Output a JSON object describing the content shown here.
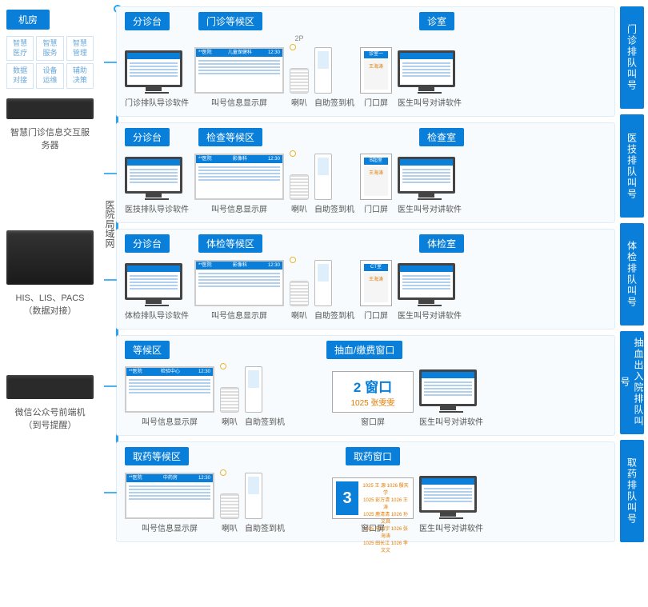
{
  "colors": {
    "primary": "#0a7fd9",
    "accent": "#2aa4f2",
    "orange": "#e27a00",
    "bg_panel": "#f8fbfd",
    "border": "#e1edf6"
  },
  "left": {
    "header": "机房",
    "tags": [
      "智慧医疗",
      "智慧服务",
      "智慧管理",
      "数据对接",
      "设备运维",
      "辅助决策"
    ],
    "server1": "智慧门诊信息交互服务器",
    "lan": "医院局域网",
    "server2a": "HIS、LIS、PACS",
    "server2b": "（数据对接）",
    "server3a": "微信公众号前端机",
    "server3b": "（到号提醒）"
  },
  "right": [
    "门诊排队叫号",
    "医技排队叫号",
    "体检排队叫号",
    "抽血出入院排队叫号",
    "取药排队叫号"
  ],
  "rows": [
    {
      "tags": [
        "分诊台",
        "门诊等候区",
        "诊室"
      ],
      "items": [
        {
          "t": "mon",
          "c": "门诊排队导诊软件"
        },
        {
          "t": "wide",
          "c": "叫号信息显示屏",
          "hdr": "儿童保健科",
          "time": "12:30"
        },
        {
          "t": "spk",
          "c": "喇叭",
          "note": "2P"
        },
        {
          "t": "kiosk",
          "c": "自助签到机"
        },
        {
          "t": "door",
          "c": "门口屏",
          "hdr": "诊室一",
          "body": "王海涛"
        },
        {
          "t": "mon",
          "c": "医生叫号对讲软件"
        }
      ]
    },
    {
      "tags": [
        "分诊台",
        "检查等候区",
        "检查室"
      ],
      "items": [
        {
          "t": "mon",
          "c": "医技排队导诊软件"
        },
        {
          "t": "wide",
          "c": "叫号信息显示屏",
          "hdr": "影像科",
          "time": "12:30"
        },
        {
          "t": "spk",
          "c": "喇叭"
        },
        {
          "t": "kiosk",
          "c": "自助签到机"
        },
        {
          "t": "door",
          "c": "门口屏",
          "hdr": "B超室",
          "body": "王海涛"
        },
        {
          "t": "mon",
          "c": "医生叫号对讲软件"
        }
      ]
    },
    {
      "tags": [
        "分诊台",
        "体检等候区",
        "体检室"
      ],
      "items": [
        {
          "t": "mon",
          "c": "体检排队导诊软件"
        },
        {
          "t": "wide",
          "c": "叫号信息显示屏",
          "hdr": "影像科",
          "time": "12:30"
        },
        {
          "t": "spk",
          "c": "喇叭"
        },
        {
          "t": "kiosk",
          "c": "自助签到机"
        },
        {
          "t": "door",
          "c": "门口屏",
          "hdr": "CT室",
          "body": "王海涛"
        },
        {
          "t": "mon",
          "c": "医生叫号对讲软件"
        }
      ]
    },
    {
      "tags": [
        "等候区",
        "抽血/缴费窗口"
      ],
      "items": [
        {
          "t": "wide",
          "c": "叫号信息显示屏",
          "hdr": "检验中心",
          "time": "12:30"
        },
        {
          "t": "spk",
          "c": "喇叭"
        },
        {
          "t": "kiosk",
          "c": "自助签到机"
        },
        {
          "t": "sp"
        },
        {
          "t": "win1",
          "c": "窗口屏",
          "big": "2 窗口",
          "sm": "1025 张雯雯"
        },
        {
          "t": "mon",
          "c": "医生叫号对讲软件"
        }
      ]
    },
    {
      "tags": [
        "取药等候区",
        "取药窗口"
      ],
      "items": [
        {
          "t": "wide",
          "c": "叫号信息显示屏",
          "hdr": "中药房",
          "time": "12:30",
          "cols": "窗口号    请取药"
        },
        {
          "t": "spk",
          "c": "喇叭"
        },
        {
          "t": "kiosk",
          "c": "自助签到机"
        },
        {
          "t": "sp"
        },
        {
          "t": "win2",
          "c": "窗口屏",
          "n": "3",
          "names": [
            "1025 王 源  1026 殷天学",
            "1025 彭万清  1026 王 涛",
            "1025 鹿清清  1026 孙文昌",
            "1025 马钧宇  1026 张海涛",
            "1025 田长江  1026 李文文"
          ]
        },
        {
          "t": "mon",
          "c": "医生叫号对讲软件"
        }
      ]
    }
  ]
}
